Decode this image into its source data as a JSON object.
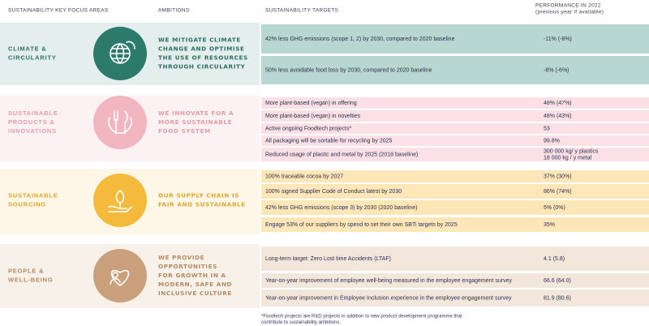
{
  "header": {
    "columns": [
      "SUSTAINABILITY KEY FOCUS AREAS",
      "AMBITIONS",
      "SUSTAINABILITY TARGETS",
      [
        "PERFORMANCE IN 2022",
        "(previous year if available)"
      ]
    ]
  },
  "sections": [
    {
      "area": [
        "CLIMATE &",
        "CIRCULARITY"
      ],
      "ambition": [
        "WE MITIGATE CLIMATE",
        "CHANGE AND OPTIMISE",
        "THE USE OF RESOURCES",
        "THROUGH CIRCULARITY"
      ],
      "targets": [
        {
          "target": "42% less GHG emissions (scope 1, 2) by 2030, compared to 2020 baseline",
          "performance": "-11% (-8%)"
        },
        {
          "target": "50% less avoidable food loss by 2030, compared to 2020 baseline",
          "performance": "-8% (-6%)"
        }
      ]
    },
    {
      "area": [
        "SUSTAINABLE",
        "PRODUCTS &",
        "INNOVATIONS"
      ],
      "ambition": [
        "WE INNOVATE FOR A",
        "MORE SUSTAINABLE",
        "FOOD SYSTEM"
      ],
      "targets": [
        {
          "target": "More plant-based (vegan) in offering",
          "performance": "48% (47%)"
        },
        {
          "target": "More plant-based (vegan) in novelties",
          "performance": "48% (43%)"
        },
        {
          "target": "Active ongoing Foodtech projects*",
          "performance": "53"
        },
        {
          "target": "All packaging will be sortable for recycling by 2025",
          "performance": "99.8%"
        },
        {
          "target": "Reduced usage of plastic and metal by 2025 (2018 baseline)",
          "performance": [
            "300 000 kg/ y plastics",
            "18 000 kg / y metal"
          ]
        }
      ]
    },
    {
      "area": [
        "SUSTAINABLE",
        "SOURCING"
      ],
      "ambition": [
        "OUR SUPPLY CHAIN IS",
        "FAIR AND SUSTAINABLE"
      ],
      "targets": [
        {
          "target": "100% traceable cocoa by 2027",
          "performance": "37% (30%)"
        },
        {
          "target": "100% signed Supplier Code of Conduct latest by 2030",
          "performance": "86% (74%)"
        },
        {
          "target": "42% less GHG emissions (scope 3) by 2030 (2020 baseline)",
          "performance": "5% (0%)"
        },
        {
          "target": "Engage 53% of our suppliers by spend to set their own SBTi targets by 2025",
          "performance": "35%"
        }
      ]
    },
    {
      "area": [
        "PEOPLE &",
        "WELL-BEING"
      ],
      "ambition": [
        "WE PROVIDE",
        "OPPORTUNITIES",
        "FOR GROWTH IN A",
        "MODERN, SAFE AND",
        "INCLUSIVE CULTURE"
      ],
      "targets": [
        {
          "target": "Long-term target: Zero Lost time Accidents (LTAF)",
          "performance": "4.1 (5.8)"
        },
        {
          "target": "Year-on-year improvement of employee well-being measured in the employee engagement survey",
          "performance": "66.6 (64.0)"
        },
        {
          "target": "Year-on-year improvement in Employee Inclusion experience in the employee engagement survey",
          "performance": "81.9 (80.6)"
        }
      ]
    }
  ],
  "footnote": [
    "*Foodtech projects are R&D projects in addition to new product development programme that",
    "contribute to sustainability ambitions."
  ]
}
